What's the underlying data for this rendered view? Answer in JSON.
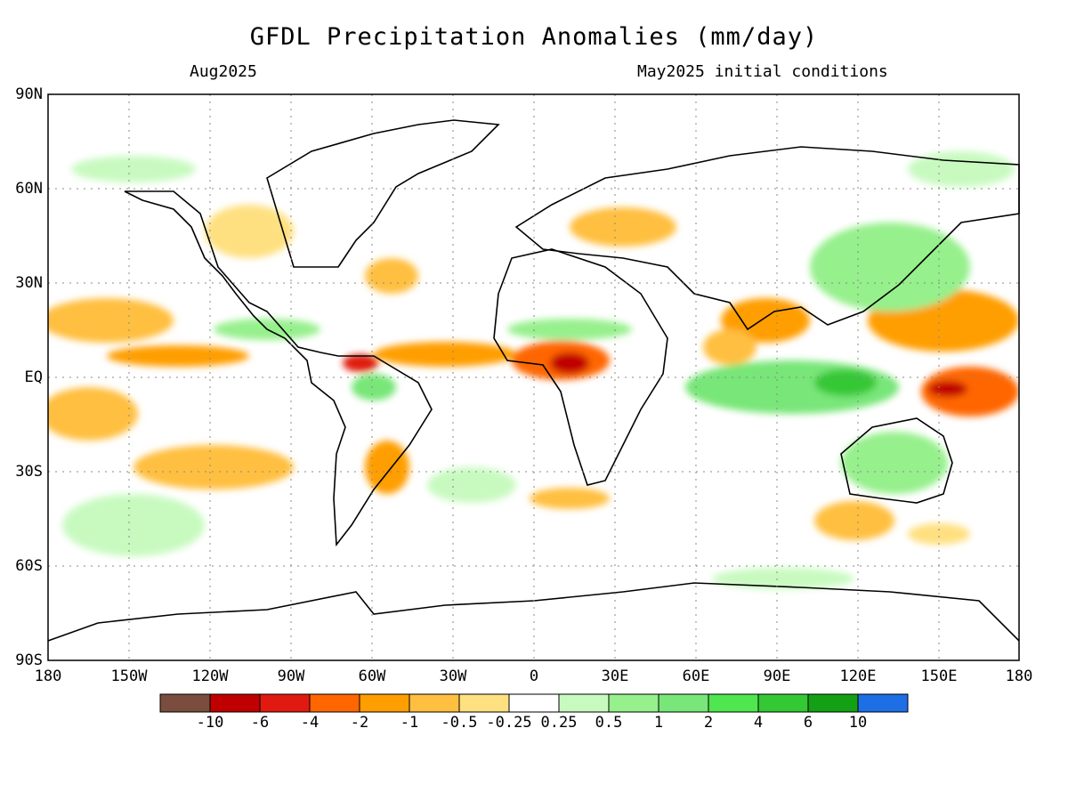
{
  "title": "GFDL Precipitation Anomalies (mm/day)",
  "valid_month": "Aug2025",
  "initial_conditions": "May2025 initial conditions",
  "lat_labels": [
    "90N",
    "60N",
    "30N",
    "EQ",
    "30S",
    "60S",
    "90S"
  ],
  "lon_labels": [
    "180",
    "150W",
    "120W",
    "90W",
    "60W",
    "30W",
    "0",
    "30E",
    "60E",
    "90E",
    "120E",
    "150E",
    "180"
  ],
  "colorbar": {
    "colors": [
      "#7a4d3f",
      "#c00000",
      "#e01a10",
      "#ff6600",
      "#ff9e00",
      "#ffbf40",
      "#ffe080",
      "#ffffff",
      "#c8fac0",
      "#96f08c",
      "#78e678",
      "#4fe64f",
      "#35c835",
      "#14a014",
      "#1e6ee6"
    ],
    "labels": [
      "-10",
      "-6",
      "-4",
      "-2",
      "-1",
      "-0.5",
      "-0.25",
      "0.25",
      "0.5",
      "1",
      "2",
      "4",
      "6",
      "10"
    ]
  },
  "map": {
    "lon_range": [
      -180,
      180
    ],
    "lat_range": [
      -90,
      90
    ],
    "grid": "dotted every 30 degrees",
    "dry_regions": [
      "Tropical eastern Pacific (ITCZ)",
      "Western equatorial Pacific",
      "Northern South America",
      "West-central equatorial Africa",
      "South Asia / Bay of Bengal",
      "Southern Brazil / Uruguay"
    ],
    "wet_regions": [
      "Maritime Continent",
      "Central equatorial Indian Ocean",
      "Northeast Asia",
      "Southern Australia",
      "Sahel"
    ]
  }
}
